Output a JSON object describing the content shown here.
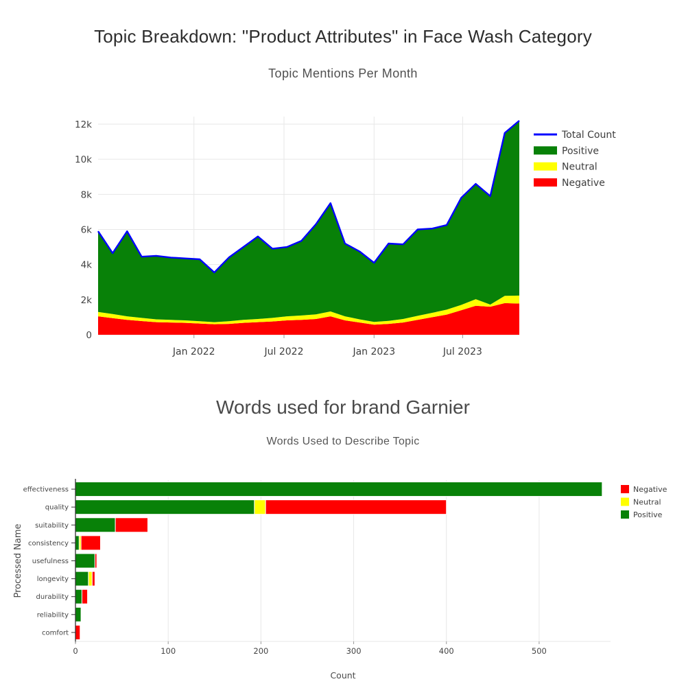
{
  "page": {
    "main_title": "Topic Breakdown: \"Product Attributes\" in Face Wash Category"
  },
  "chart_data": [
    {
      "type": "area",
      "title": "Topic Mentions Per Month",
      "x_unit": "month",
      "x_range_note": "monthly points from mid-2021 through late 2023",
      "x_tick_labels": [
        "Jan 2022",
        "Jul 2022",
        "Jan 2023",
        "Jul 2023"
      ],
      "x_tick_positions": [
        6.6,
        12.8,
        19.0,
        25.1
      ],
      "y_tick_labels": [
        "0",
        "2k",
        "4k",
        "6k",
        "8k",
        "10k",
        "12k"
      ],
      "y_tick_values": [
        0,
        2000,
        4000,
        6000,
        8000,
        10000,
        12000
      ],
      "ylim": [
        0,
        12400
      ],
      "grid": true,
      "legend_position": "right",
      "series": [
        {
          "name": "Negative",
          "color": "#ff0000",
          "values": [
            1050,
            950,
            850,
            780,
            720,
            700,
            680,
            640,
            600,
            620,
            680,
            720,
            760,
            820,
            850,
            900,
            1050,
            820,
            700,
            580,
            620,
            700,
            850,
            1000,
            1150,
            1400,
            1650,
            1600,
            1800,
            1780
          ]
        },
        {
          "name": "Neutral",
          "color": "#ffff00",
          "values": [
            250,
            230,
            200,
            180,
            160,
            150,
            140,
            130,
            120,
            150,
            170,
            180,
            200,
            230,
            250,
            260,
            280,
            230,
            180,
            150,
            170,
            200,
            230,
            250,
            280,
            300,
            380,
            120,
            420,
            450
          ]
        },
        {
          "name": "Positive",
          "color": "#088108",
          "values": [
            4600,
            3470,
            4850,
            3490,
            3620,
            3550,
            3530,
            3530,
            2830,
            3630,
            4150,
            4700,
            3940,
            3950,
            4250,
            5140,
            6170,
            4150,
            3870,
            3370,
            4410,
            4250,
            4920,
            4800,
            4820,
            6100,
            6570,
            6180,
            9280,
            9970
          ]
        }
      ],
      "total_line": {
        "name": "Total Count",
        "color": "#0000ff",
        "values": [
          5900,
          4650,
          5900,
          4450,
          4500,
          4400,
          4350,
          4300,
          3550,
          4400,
          5000,
          5600,
          4900,
          5000,
          5350,
          6300,
          7500,
          5200,
          4750,
          4100,
          5200,
          5150,
          6000,
          6050,
          6250,
          7800,
          8600,
          7900,
          11500,
          12200
        ]
      },
      "legend": [
        {
          "label": "Total Count",
          "color": "#0000ff",
          "swatch": "line"
        },
        {
          "label": "Positive",
          "color": "#088108",
          "swatch": "bar"
        },
        {
          "label": "Neutral",
          "color": "#ffff00",
          "swatch": "bar"
        },
        {
          "label": "Negative",
          "color": "#ff0000",
          "swatch": "bar"
        }
      ]
    },
    {
      "type": "bar",
      "orientation": "horizontal",
      "section_title": "Words used for brand Garnier",
      "title": "Words Used to Describe Topic",
      "xlabel": "Count",
      "ylabel": "Processed Name",
      "x_tick_values": [
        0,
        100,
        200,
        300,
        400,
        500
      ],
      "xlim": [
        0,
        577
      ],
      "grid": true,
      "categories": [
        "effectiveness",
        "quality",
        "suitability",
        "consistency",
        "usefulness",
        "longevity",
        "durability",
        "reliability",
        "comfort"
      ],
      "series": [
        {
          "name": "Positive",
          "color": "#088108",
          "values": [
            568,
            193,
            43,
            4,
            21,
            14,
            7,
            6,
            0
          ]
        },
        {
          "name": "Neutral",
          "color": "#ffff00",
          "values": [
            0,
            12,
            0,
            2,
            0,
            4,
            0,
            0,
            0
          ]
        },
        {
          "name": "Negative",
          "color": "#ff0000",
          "values": [
            0,
            195,
            35,
            21,
            2,
            3,
            6,
            0,
            5
          ]
        }
      ],
      "legend": [
        {
          "label": "Negative",
          "color": "#ff0000"
        },
        {
          "label": "Neutral",
          "color": "#ffff00"
        },
        {
          "label": "Positive",
          "color": "#088108"
        }
      ]
    }
  ]
}
